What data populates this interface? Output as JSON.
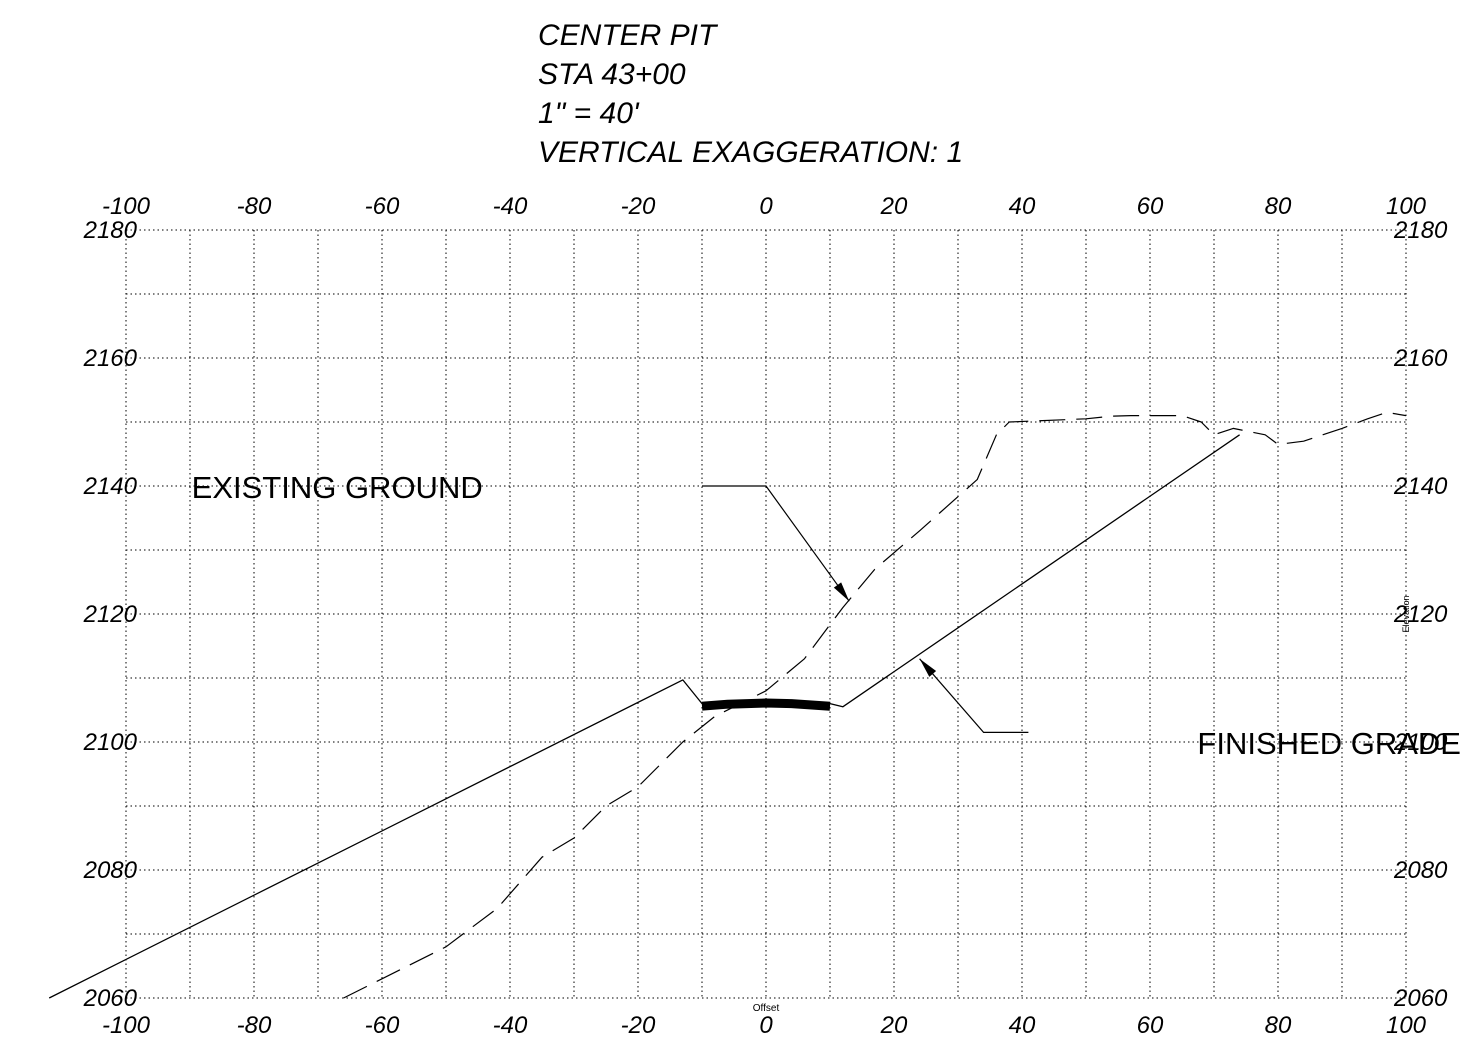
{
  "title_lines": [
    "CENTER PIT",
    "STA 43+00",
    "1\" = 40'",
    "VERTICAL EXAGGERATION: 1"
  ],
  "chart_data": {
    "type": "line",
    "title": "CENTER PIT",
    "xlabel": "Offset",
    "ylabel": "Elevation",
    "xlim": [
      -100,
      100
    ],
    "ylim": [
      2060,
      2180
    ],
    "x_ticks": [
      -100,
      -80,
      -60,
      -40,
      -20,
      0,
      20,
      40,
      60,
      80,
      100
    ],
    "x_tick_labels": [
      "-100",
      "-80",
      "-60",
      "-40",
      "-20",
      "0",
      "20",
      "40",
      "60",
      "80",
      "100"
    ],
    "y_ticks": [
      2060,
      2080,
      2100,
      2120,
      2140,
      2160,
      2180
    ],
    "y_tick_labels": [
      "2060",
      "2080",
      "2100",
      "2120",
      "2140",
      "2160",
      "2180"
    ],
    "grid": true,
    "grid_style": "dotted",
    "colors": {
      "line": "#000000",
      "grid": "#000000",
      "background": "#ffffff"
    },
    "series": [
      {
        "name": "EXISTING GROUND",
        "style": "dashed",
        "x": [
          -66,
          -62,
          -50,
          -42,
          -35,
          -30,
          -25,
          -20,
          -13,
          -8,
          0,
          6,
          12,
          17,
          24,
          33,
          36,
          38,
          50,
          54,
          57,
          65,
          68,
          70,
          73,
          78,
          80,
          84,
          90,
          94,
          97,
          100
        ],
        "y": [
          2060,
          2062,
          2068,
          2074,
          2082,
          2085,
          2090,
          2093,
          2100,
          2104,
          2108,
          2113,
          2121,
          2127,
          2133,
          2141,
          2148,
          2150,
          2150.5,
          2150.9,
          2151,
          2151,
          2150,
          2148,
          2149,
          2148,
          2146.5,
          2147,
          2149,
          2150.5,
          2151.5,
          2151
        ]
      },
      {
        "name": "FINISHED GRADE",
        "style": "solid",
        "x": [
          -112,
          -13,
          -10,
          10,
          12,
          74
        ],
        "y": [
          2060,
          2109.7,
          2106,
          2106,
          2105.5,
          2148
        ]
      },
      {
        "name": "",
        "style": "thick",
        "x": [
          -10,
          -6,
          0,
          4,
          10
        ],
        "y": [
          2105.6,
          2105.9,
          2106.1,
          2106,
          2105.6
        ]
      }
    ],
    "annotations": [
      {
        "text": "EXISTING GROUND",
        "label_x": -67,
        "label_y": 2140,
        "leader": [
          [
            -10,
            2140
          ],
          [
            0,
            2140
          ],
          [
            13,
            2122
          ]
        ]
      },
      {
        "text": "FINISHED GRADE",
        "label_x": 88,
        "label_y": 2100,
        "leader": [
          [
            41,
            2101.5
          ],
          [
            34,
            2101.5
          ],
          [
            24,
            2113
          ]
        ]
      }
    ]
  }
}
